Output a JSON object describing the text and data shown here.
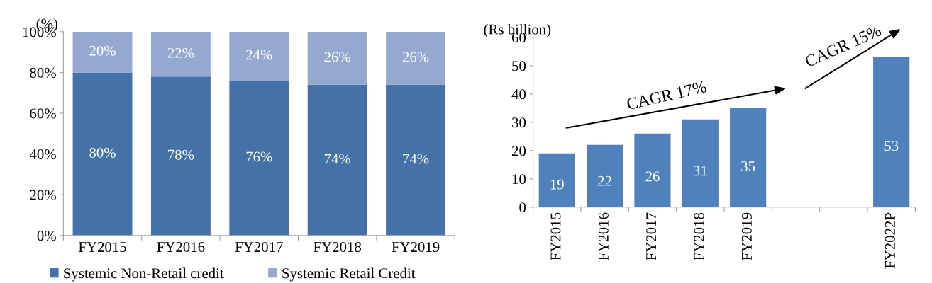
{
  "chart_data": [
    {
      "type": "bar",
      "stacked": true,
      "ylabel": "(%)",
      "categories": [
        "FY2015",
        "FY2016",
        "FY2017",
        "FY2018",
        "FY2019"
      ],
      "series": [
        {
          "name": "Systemic Non-Retail credit",
          "color": "#4472a8",
          "values": [
            80,
            78,
            76,
            74,
            74
          ],
          "value_labels": [
            "80%",
            "78%",
            "76%",
            "74%",
            "74%"
          ]
        },
        {
          "name": "Systemic Retail Credit",
          "color": "#95a8d0",
          "values": [
            20,
            22,
            24,
            26,
            26
          ],
          "value_labels": [
            "20%",
            "22%",
            "24%",
            "26%",
            "26%"
          ]
        }
      ],
      "ylim": [
        0,
        100
      ],
      "yticks": [
        {
          "value": 0,
          "label": "0%"
        },
        {
          "value": 20,
          "label": "20%"
        },
        {
          "value": 40,
          "label": "40%"
        },
        {
          "value": 60,
          "label": "60%"
        },
        {
          "value": 80,
          "label": "80%"
        },
        {
          "value": 100,
          "label": "100%"
        }
      ],
      "grid": false,
      "legend": "bottom"
    },
    {
      "type": "bar",
      "ylabel": "(Rs billion)",
      "categories": [
        "FY2015",
        "FY2016",
        "FY2017",
        "FY2018",
        "FY2019",
        null,
        null,
        "FY2022P"
      ],
      "values": [
        19,
        22,
        26,
        31,
        35,
        null,
        null,
        53
      ],
      "color": "#4f81bd",
      "data_labels": true,
      "ylim": [
        0,
        60
      ],
      "yticks": [
        0,
        10,
        20,
        30,
        40,
        50,
        60
      ],
      "grid": false,
      "annotations": [
        "CAGR 17%",
        "CAGR 15%"
      ]
    }
  ]
}
